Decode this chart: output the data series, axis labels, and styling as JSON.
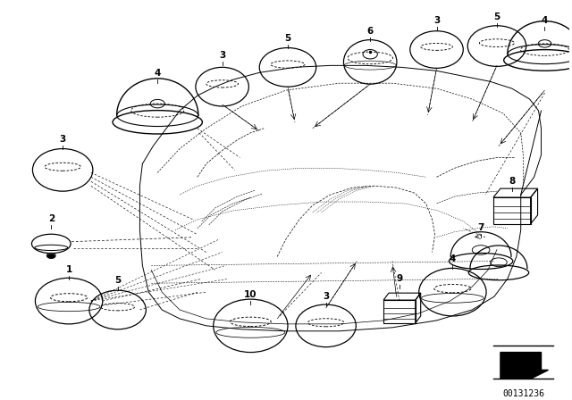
{
  "bg_color": "#ffffff",
  "fig_width": 6.4,
  "fig_height": 4.48,
  "dpi": 100,
  "part_number": "00131236",
  "lc": "#000000"
}
